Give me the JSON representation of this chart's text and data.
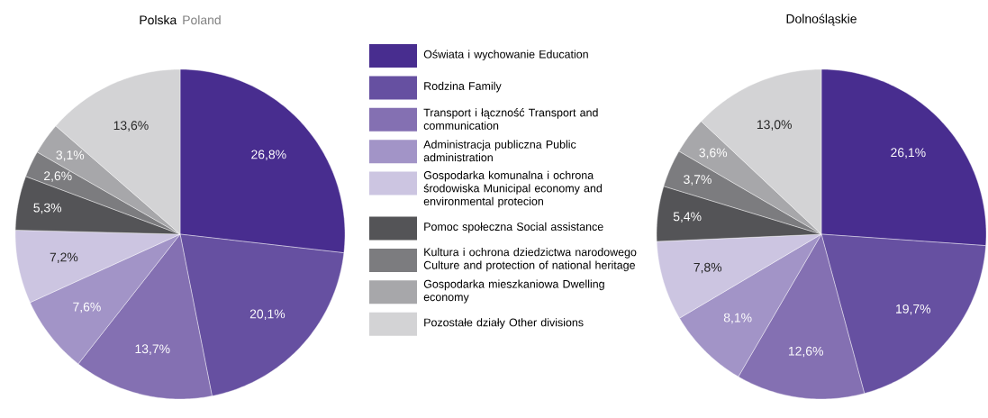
{
  "chart_data": [
    {
      "type": "pie",
      "title": "Polska",
      "subtitle": "Poland",
      "legend": "right",
      "categories": [
        "Oświata i wychowanie Education",
        "Rodzina Family",
        "Transport i łączność Transport and communication",
        "Administracja publiczna Public administration",
        "Gospodarka komunalna i ochrona środowiska Municipal economy and environmental protecion",
        "Pomoc społeczna Social assistance",
        "Kultura i ochrona dziedzictwa narodowego Culture and protection of national heritage",
        "Gospodarka mieszkaniowa Dwelling economy",
        "Pozostałe działy Other divisions"
      ],
      "values": [
        26.8,
        20.1,
        13.7,
        7.6,
        7.2,
        5.3,
        2.6,
        3.1,
        13.6
      ],
      "value_labels": [
        "26,8%",
        "20,1%",
        "13,7%",
        "7,6%",
        "7,2%",
        "5,3%",
        "2,6%",
        "3,1%",
        "13,6%"
      ],
      "colors": [
        "#482d8f",
        "#6650a1",
        "#8470b2",
        "#a294c7",
        "#ccc5e1",
        "#545457",
        "#7c7c7f",
        "#a7a7aa",
        "#d3d3d5"
      ]
    },
    {
      "type": "pie",
      "title": "Dolnośląskie",
      "values": [
        26.1,
        19.7,
        12.6,
        8.1,
        7.8,
        5.4,
        3.7,
        3.6,
        13.0
      ],
      "value_labels": [
        "26,1%",
        "19,7%",
        "12,6%",
        "8,1%",
        "7,8%",
        "5,4%",
        "3,7%",
        "3,6%",
        "13,0%"
      ],
      "colors": [
        "#482d8f",
        "#6650a1",
        "#8470b2",
        "#a294c7",
        "#ccc5e1",
        "#545457",
        "#7c7c7f",
        "#a7a7aa",
        "#d3d3d5"
      ]
    }
  ]
}
